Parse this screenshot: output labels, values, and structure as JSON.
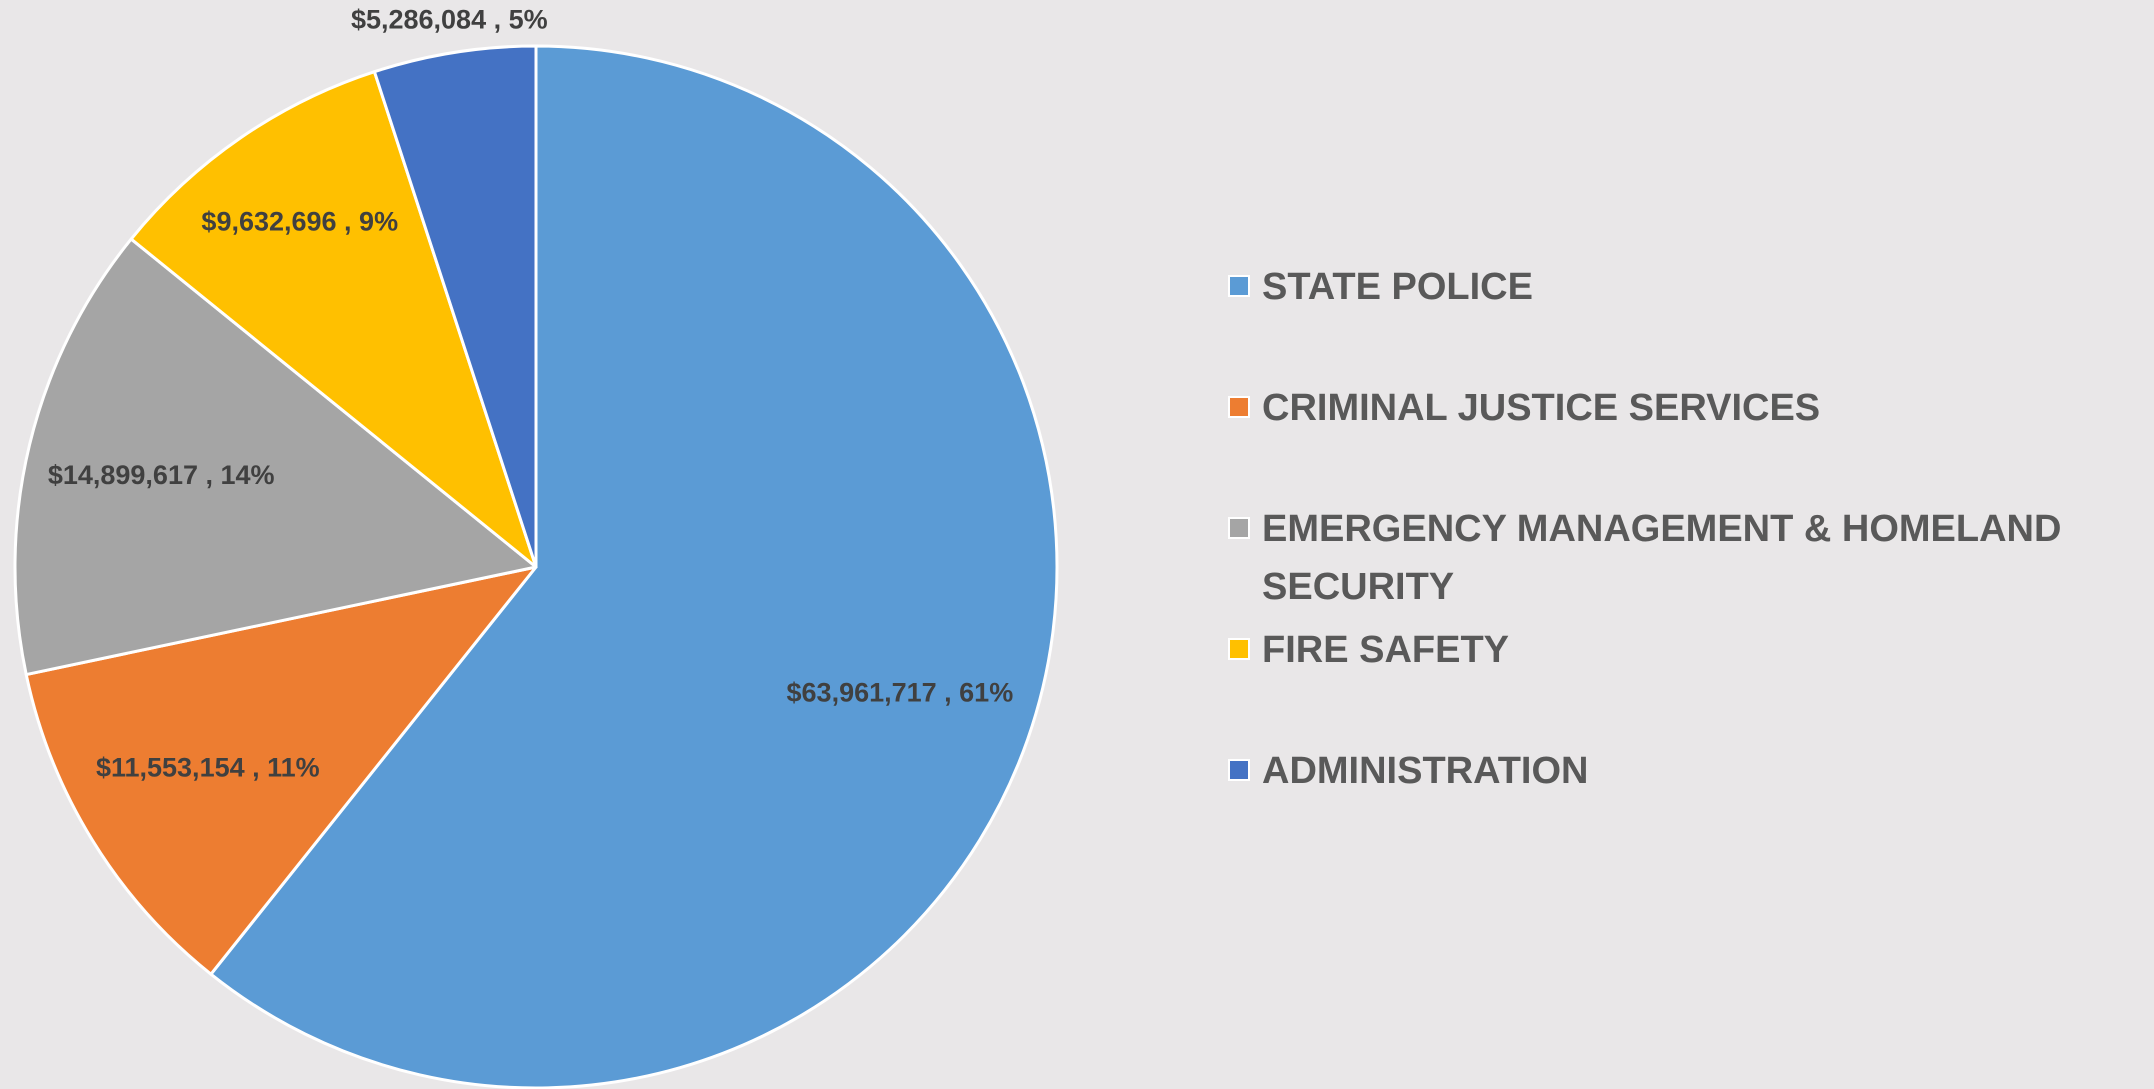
{
  "chart_data": {
    "type": "pie",
    "categories": [
      "STATE POLICE",
      "CRIMINAL JUSTICE SERVICES",
      "EMERGENCY MANAGEMENT & HOMELAND SECURITY",
      "FIRE SAFETY",
      "ADMINISTRATION"
    ],
    "values": [
      63961717,
      11553154,
      14899617,
      9632696,
      5286084
    ],
    "value_labels": [
      "$63,961,717 , 61%",
      "$11,553,154 , 11%",
      "$14,899,617 , 14%",
      "$9,632,696 , 9%",
      "$5,286,084 , 5%"
    ],
    "colors": [
      "#5b9bd5",
      "#ed7d31",
      "#a5a5a5",
      "#ffc000",
      "#4472c4"
    ],
    "legend": "right"
  }
}
